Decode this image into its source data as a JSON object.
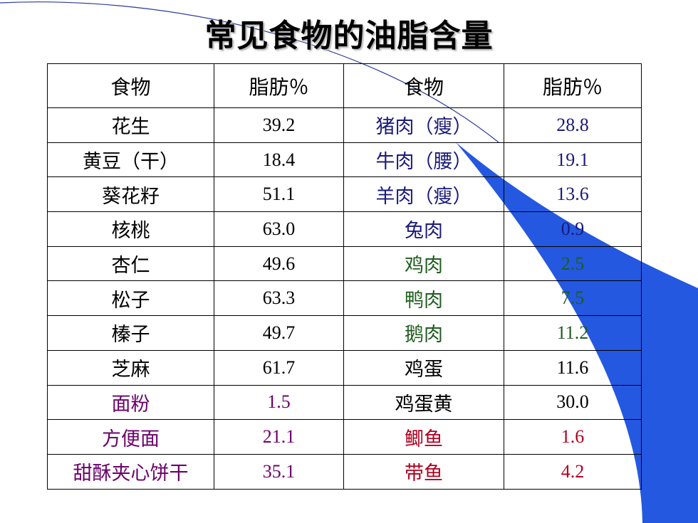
{
  "title": "常见食物的油脂含量",
  "colors": {
    "default": "#000000",
    "meat": "#1a1a7a",
    "poultry": "#1f5c1f",
    "grain": "#6b006b",
    "fish": "#b00020",
    "deco_blue": "#2458e0",
    "deco_line": "#2a3a9a"
  },
  "table": {
    "headers": [
      "食物",
      "脂肪％",
      "食物",
      "脂肪％"
    ],
    "rows": [
      {
        "food1": "花生",
        "fat1": "39.2",
        "color1": "default",
        "food2": "猪肉（瘦）",
        "fat2": "28.8",
        "color2": "meat"
      },
      {
        "food1": "黄豆（干）",
        "fat1": "18.4",
        "color1": "default",
        "food2": "牛肉（腰）",
        "fat2": "19.1",
        "color2": "meat"
      },
      {
        "food1": "葵花籽",
        "fat1": "51.1",
        "color1": "default",
        "food2": "羊肉（瘦）",
        "fat2": "13.6",
        "color2": "meat"
      },
      {
        "food1": "核桃",
        "fat1": "63.0",
        "color1": "default",
        "food2": "兔肉",
        "fat2": "0.9",
        "color2": "meat"
      },
      {
        "food1": "杏仁",
        "fat1": "49.6",
        "color1": "default",
        "food2": "鸡肉",
        "fat2": "2.5",
        "color2": "poultry"
      },
      {
        "food1": "松子",
        "fat1": "63.3",
        "color1": "default",
        "food2": "鸭肉",
        "fat2": "7.5",
        "color2": "poultry"
      },
      {
        "food1": "榛子",
        "fat1": "49.7",
        "color1": "default",
        "food2": "鹅肉",
        "fat2": "11.2",
        "color2": "poultry"
      },
      {
        "food1": "芝麻",
        "fat1": "61.7",
        "color1": "default",
        "food2": "鸡蛋",
        "fat2": "11.6",
        "color2": "default"
      },
      {
        "food1": "面粉",
        "fat1": "1.5",
        "color1": "grain",
        "food2": "鸡蛋黄",
        "fat2": "30.0",
        "color2": "default"
      },
      {
        "food1": "方便面",
        "fat1": "21.1",
        "color1": "grain",
        "food2": "鲫鱼",
        "fat2": "1.6",
        "color2": "fish"
      },
      {
        "food1": "甜酥夹心饼干",
        "fat1": "35.1",
        "color1": "grain",
        "food2": "带鱼",
        "fat2": "4.2",
        "color2": "fish"
      }
    ]
  }
}
